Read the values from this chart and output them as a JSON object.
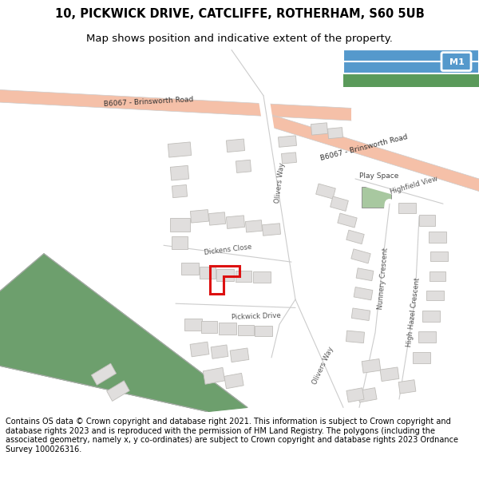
{
  "title_line1": "10, PICKWICK DRIVE, CATCLIFFE, ROTHERHAM, S60 5UB",
  "title_line2": "Map shows position and indicative extent of the property.",
  "footer_text": "Contains OS data © Crown copyright and database right 2021. This information is subject to Crown copyright and database rights 2023 and is reproduced with the permission of HM Land Registry. The polygons (including the associated geometry, namely x, y co-ordinates) are subject to Crown copyright and database rights 2023 Ordnance Survey 100026316.",
  "map_bg": "#ffffff",
  "road_salmon": "#f5c0a8",
  "road_outline": "#cccccc",
  "road_gray": "#e8e8e8",
  "building_color": "#e0dedd",
  "building_outline": "#c0beba",
  "green_area": "#6d9f6d",
  "play_space_green": "#a8c8a0",
  "red_plot": "#dd1111",
  "motorway_blue": "#5599cc",
  "motorway_green": "#5a9a5a",
  "title_fontsize": 10.5,
  "subtitle_fontsize": 9.5,
  "footer_fontsize": 7.0,
  "road_label_fontsize": 6.5,
  "small_label_fontsize": 6.2
}
